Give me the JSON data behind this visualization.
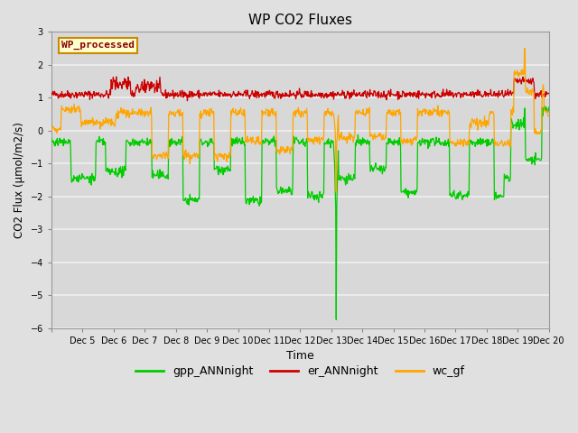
{
  "title": "WP CO2 Fluxes",
  "xlabel": "Time",
  "ylabel": "CO2 Flux (μmol/m2/s)",
  "ylim": [
    -6.0,
    3.0
  ],
  "yticks": [
    -6.0,
    -5.0,
    -4.0,
    -3.0,
    -2.0,
    -1.0,
    0.0,
    1.0,
    2.0,
    3.0
  ],
  "n_points": 960,
  "bg_color": "#e0e0e0",
  "plot_bg_color": "#d8d8d8",
  "grid_color": "#f0f0f0",
  "gpp_color": "#00cc00",
  "er_color": "#cc0000",
  "wc_color": "#ffa500",
  "text_box_label": "WP_processed",
  "text_box_facecolor": "#ffffcc",
  "text_box_edgecolor": "#cc8800",
  "text_box_textcolor": "#880000",
  "legend_labels": [
    "gpp_ANNnight",
    "er_ANNnight",
    "wc_gf"
  ],
  "xtick_labels": [
    "Dec 5",
    "Dec 6",
    "Dec 7",
    "Dec 8",
    "Dec 9",
    "Dec 10",
    "Dec 11",
    "Dec 12",
    "Dec 13",
    "Dec 14",
    "Dec 15",
    "Dec 16",
    "Dec 17",
    "Dec 18",
    "Dec 19",
    "Dec 20"
  ],
  "figsize": [
    6.4,
    4.8
  ],
  "dpi": 100
}
